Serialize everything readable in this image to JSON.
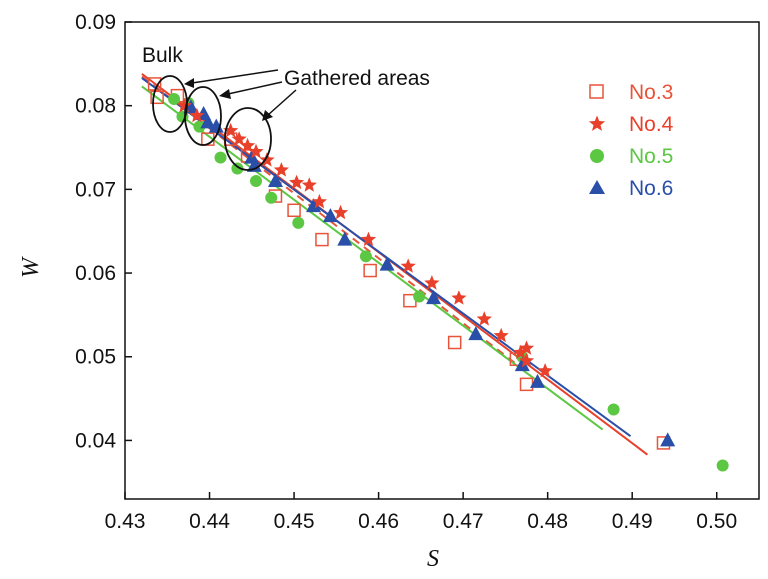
{
  "chart_data": {
    "type": "scatter",
    "xlabel": "S",
    "ylabel": "W",
    "xlim": [
      0.43,
      0.505
    ],
    "ylim": [
      0.033,
      0.09
    ],
    "x_ticks": [
      "0.43",
      "0.44",
      "0.45",
      "0.46",
      "0.47",
      "0.48",
      "0.49",
      "0.50"
    ],
    "y_ticks": [
      "0.04",
      "0.05",
      "0.06",
      "0.07",
      "0.08",
      "0.09"
    ],
    "grid": false,
    "legend_position": "top-right",
    "series": [
      {
        "name": "No.3",
        "color": "#e8543a",
        "marker": "open-square",
        "fit_line": "dashed",
        "fit": [
          [
            0.432,
            0.0835
          ],
          [
            0.478,
            0.0478
          ]
        ],
        "points": [
          [
            0.4335,
            0.0826
          ],
          [
            0.4338,
            0.081
          ],
          [
            0.4362,
            0.0812
          ],
          [
            0.4398,
            0.076
          ],
          [
            0.4425,
            0.076
          ],
          [
            0.4445,
            0.074
          ],
          [
            0.4478,
            0.0692
          ],
          [
            0.45,
            0.0675
          ],
          [
            0.4533,
            0.064
          ],
          [
            0.459,
            0.0603
          ],
          [
            0.4637,
            0.0567
          ],
          [
            0.469,
            0.0517
          ],
          [
            0.4763,
            0.0497
          ],
          [
            0.4775,
            0.0467
          ],
          [
            0.4937,
            0.0397
          ]
        ]
      },
      {
        "name": "No.4",
        "color": "#e8402a",
        "marker": "star",
        "fit_line": "solid",
        "fit": [
          [
            0.432,
            0.0838
          ],
          [
            0.4918,
            0.0383
          ]
        ],
        "points": [
          [
            0.437,
            0.08
          ],
          [
            0.4385,
            0.0788
          ],
          [
            0.4425,
            0.077
          ],
          [
            0.4435,
            0.076
          ],
          [
            0.4445,
            0.0752
          ],
          [
            0.4455,
            0.0745
          ],
          [
            0.4468,
            0.0735
          ],
          [
            0.4485,
            0.0723
          ],
          [
            0.4503,
            0.0708
          ],
          [
            0.4518,
            0.0705
          ],
          [
            0.453,
            0.0685
          ],
          [
            0.4555,
            0.0672
          ],
          [
            0.4588,
            0.064
          ],
          [
            0.4635,
            0.0608
          ],
          [
            0.4663,
            0.0588
          ],
          [
            0.4695,
            0.057
          ],
          [
            0.4725,
            0.0545
          ],
          [
            0.4745,
            0.0525
          ],
          [
            0.4768,
            0.0505
          ],
          [
            0.4775,
            0.051
          ],
          [
            0.4775,
            0.0495
          ],
          [
            0.4797,
            0.0483
          ]
        ]
      },
      {
        "name": "No.5",
        "color": "#5cc742",
        "marker": "circle",
        "fit_line": "solid",
        "fit": [
          [
            0.432,
            0.0823
          ],
          [
            0.4865,
            0.0413
          ]
        ],
        "points": [
          [
            0.4358,
            0.0808
          ],
          [
            0.4375,
            0.0803
          ],
          [
            0.4368,
            0.0787
          ],
          [
            0.4388,
            0.0775
          ],
          [
            0.4413,
            0.0738
          ],
          [
            0.4433,
            0.0725
          ],
          [
            0.4455,
            0.071
          ],
          [
            0.4473,
            0.069
          ],
          [
            0.4505,
            0.066
          ],
          [
            0.4585,
            0.062
          ],
          [
            0.4648,
            0.0572
          ],
          [
            0.477,
            0.05
          ],
          [
            0.4878,
            0.0437
          ],
          [
            0.5007,
            0.037
          ]
        ]
      },
      {
        "name": "No.6",
        "color": "#2a4fa8",
        "marker": "triangle",
        "fit_line": "solid",
        "fit": [
          [
            0.432,
            0.0833
          ],
          [
            0.4898,
            0.0405
          ]
        ],
        "points": [
          [
            0.4378,
            0.0798
          ],
          [
            0.4393,
            0.079
          ],
          [
            0.4398,
            0.078
          ],
          [
            0.4408,
            0.0775
          ],
          [
            0.445,
            0.0738
          ],
          [
            0.4453,
            0.0728
          ],
          [
            0.4478,
            0.071
          ],
          [
            0.4523,
            0.068
          ],
          [
            0.4543,
            0.0668
          ],
          [
            0.456,
            0.064
          ],
          [
            0.461,
            0.061
          ],
          [
            0.4665,
            0.057
          ],
          [
            0.4715,
            0.0527
          ],
          [
            0.477,
            0.049
          ],
          [
            0.4788,
            0.047
          ],
          [
            0.4942,
            0.04
          ]
        ]
      }
    ],
    "annotations": [
      {
        "text": "Bulk",
        "target": [
          0.4365,
          0.08
        ]
      },
      {
        "text": "Gathered areas",
        "targets": [
          [
            0.44,
            0.0785
          ],
          [
            0.445,
            0.0743
          ]
        ]
      }
    ]
  }
}
